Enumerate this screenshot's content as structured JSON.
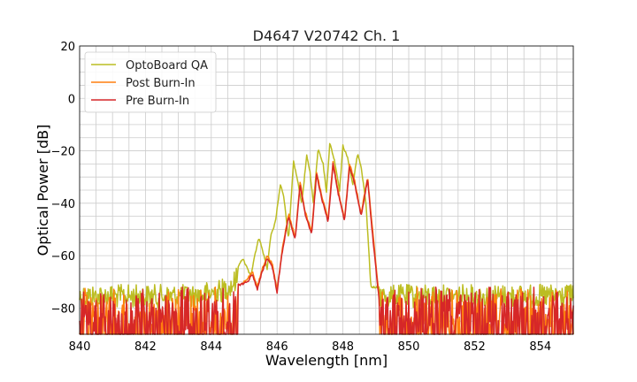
{
  "chart_data": {
    "type": "line",
    "title": "D4647 V20742 Ch. 1",
    "xlabel": "Wavelength [nm]",
    "ylabel": "Optical Power [dB]",
    "xlim": [
      840,
      855
    ],
    "ylim": [
      -90,
      20
    ],
    "grid": true,
    "legend_position": "top-left",
    "x_ticks": [
      840,
      842,
      844,
      846,
      848,
      850,
      852,
      854
    ],
    "y_ticks": [
      20,
      0,
      -20,
      -40,
      -60,
      -80
    ],
    "x_tick_labels": [
      "840",
      "842",
      "844",
      "846",
      "848",
      "850",
      "852",
      "854"
    ],
    "y_tick_labels": [
      "20",
      "0",
      "−20",
      "−40",
      "−60",
      "−80"
    ],
    "noise_floor_range": [
      -90,
      -72
    ],
    "series": [
      {
        "name": "OptoBoard QA",
        "color": "#bcbd22",
        "x": [
          840.0,
          843.5,
          844.3,
          844.6,
          844.8,
          844.95,
          845.1,
          845.2,
          845.3,
          845.45,
          845.6,
          845.7,
          845.8,
          845.95,
          846.1,
          846.2,
          846.35,
          846.5,
          846.6,
          846.75,
          846.9,
          847.0,
          847.1,
          847.25,
          847.4,
          847.5,
          847.6,
          847.75,
          847.9,
          848.0,
          848.15,
          848.3,
          848.45,
          848.55,
          848.7,
          848.85,
          849.0,
          849.4,
          855.0
        ],
        "y": [
          -72,
          -72,
          -70,
          -68,
          -65,
          -61,
          -65,
          -68,
          -61,
          -53,
          -60,
          -65,
          -53,
          -47,
          -33,
          -37,
          -54,
          -24,
          -30,
          -40,
          -22,
          -28,
          -40,
          -19,
          -25,
          -36,
          -17,
          -24,
          -35,
          -18,
          -23,
          -33,
          -21,
          -26,
          -40,
          -72,
          -72,
          -72,
          -72
        ]
      },
      {
        "name": "Post Burn-In",
        "color": "#ff7f0e",
        "x": [
          840.0,
          844.9,
          845.1,
          845.25,
          845.4,
          845.55,
          845.7,
          845.85,
          846.0,
          846.15,
          846.35,
          846.55,
          846.7,
          846.85,
          847.05,
          847.2,
          847.35,
          847.55,
          847.7,
          847.85,
          848.05,
          848.2,
          848.35,
          848.55,
          848.75,
          848.9,
          849.1,
          849.2,
          855.0
        ],
        "y": [
          -75,
          -71,
          -69,
          -66,
          -72,
          -65,
          -60,
          -63,
          -73,
          -58,
          -44,
          -53,
          -32,
          -43,
          -51,
          -28,
          -37,
          -46,
          -24,
          -35,
          -46,
          -25,
          -31,
          -44,
          -30,
          -50,
          -76,
          -78,
          -76
        ]
      },
      {
        "name": "Pre Burn-In",
        "color": "#d62728",
        "x": [
          840.0,
          844.9,
          845.1,
          845.25,
          845.4,
          845.55,
          845.7,
          845.85,
          846.0,
          846.15,
          846.35,
          846.55,
          846.7,
          846.85,
          847.05,
          847.2,
          847.35,
          847.55,
          847.7,
          847.85,
          848.05,
          848.2,
          848.35,
          848.55,
          848.75,
          848.9,
          849.1,
          849.2,
          855.0
        ],
        "y": [
          -75,
          -71,
          -70,
          -67,
          -73,
          -66,
          -61,
          -64,
          -74,
          -59,
          -45,
          -54,
          -33,
          -44,
          -52,
          -29,
          -38,
          -47,
          -25,
          -36,
          -47,
          -26,
          -32,
          -45,
          -31,
          -52,
          -77,
          -79,
          -77
        ]
      }
    ]
  }
}
